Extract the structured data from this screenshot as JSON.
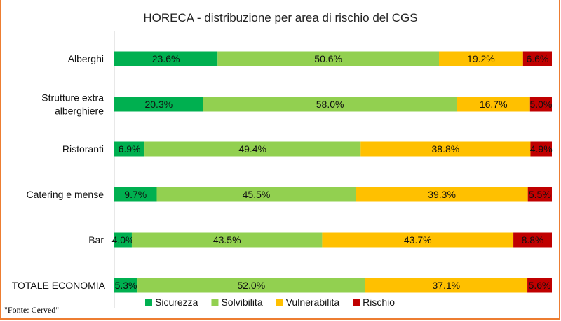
{
  "chart_data": {
    "type": "bar",
    "orientation": "horizontal",
    "stacked": true,
    "title": "HORECA - distribuzione per area di rischio del CGS",
    "categories": [
      "Alberghi",
      "Strutture extra alberghiere",
      "Ristoranti",
      "Catering e mense",
      "Bar",
      "TOTALE ECONOMIA"
    ],
    "series": [
      {
        "name": "Sicurezza",
        "color": "#00B050",
        "values": [
          23.6,
          20.3,
          6.9,
          9.7,
          4.0,
          5.3
        ]
      },
      {
        "name": "Solvibilita",
        "color": "#92D050",
        "values": [
          50.6,
          58.0,
          49.4,
          45.5,
          43.5,
          52.0
        ]
      },
      {
        "name": "Vulnerabilita",
        "color": "#FFC000",
        "values": [
          19.2,
          16.7,
          38.8,
          39.3,
          43.7,
          37.1
        ]
      },
      {
        "name": "Rischio",
        "color": "#C00000",
        "values": [
          6.6,
          5.0,
          4.9,
          5.5,
          8.8,
          5.6
        ]
      }
    ],
    "xlim": [
      0,
      100
    ],
    "legend": "bottom",
    "grid": false,
    "data_label_format": "0.0%"
  },
  "source": "\"Fonte: Cerved\"",
  "border_color": "#ED7D31"
}
